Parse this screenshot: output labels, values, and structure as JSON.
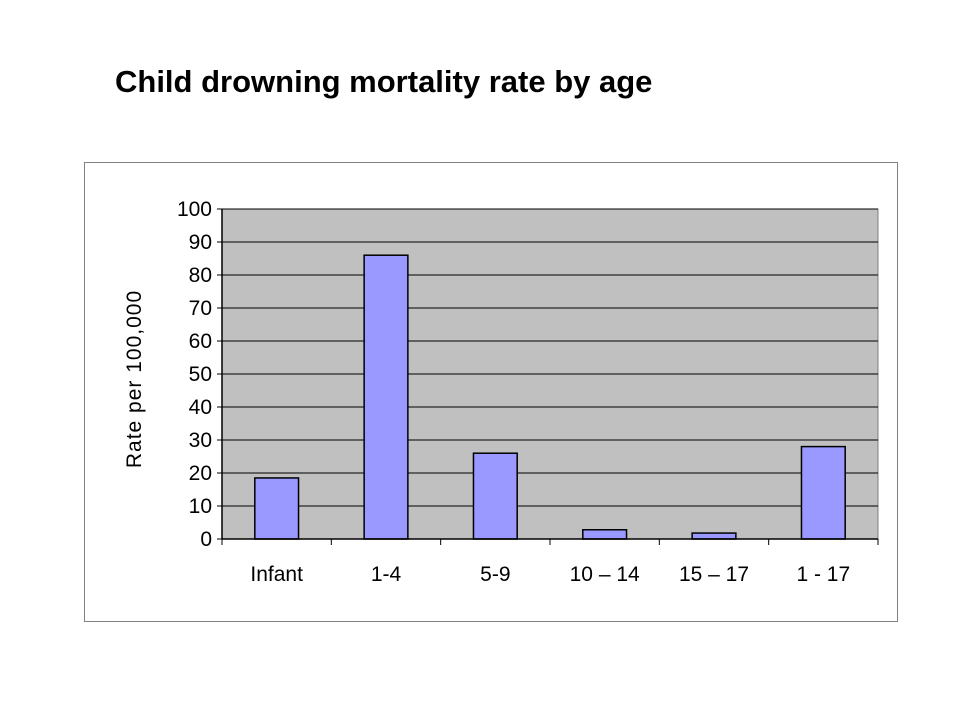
{
  "page": {
    "title": "Child drowning mortality rate by age"
  },
  "chart_data": {
    "type": "bar",
    "title": "",
    "xlabel": "",
    "ylabel": "Rate per 100,000",
    "categories": [
      "Infant",
      "1-4",
      "5-9",
      "10 – 14",
      "15 – 17",
      "1 - 17"
    ],
    "values": [
      18.5,
      86,
      26,
      2.8,
      1.8,
      28
    ],
    "ylim": [
      0,
      100
    ],
    "yticks": [
      0,
      10,
      20,
      30,
      40,
      50,
      60,
      70,
      80,
      90,
      100
    ],
    "grid": true,
    "legend": "none",
    "colors": {
      "bar_fill": "#9999ff",
      "bar_stroke": "#000000",
      "plot_background": "#c0c0c0",
      "gridline": "#000000"
    }
  }
}
